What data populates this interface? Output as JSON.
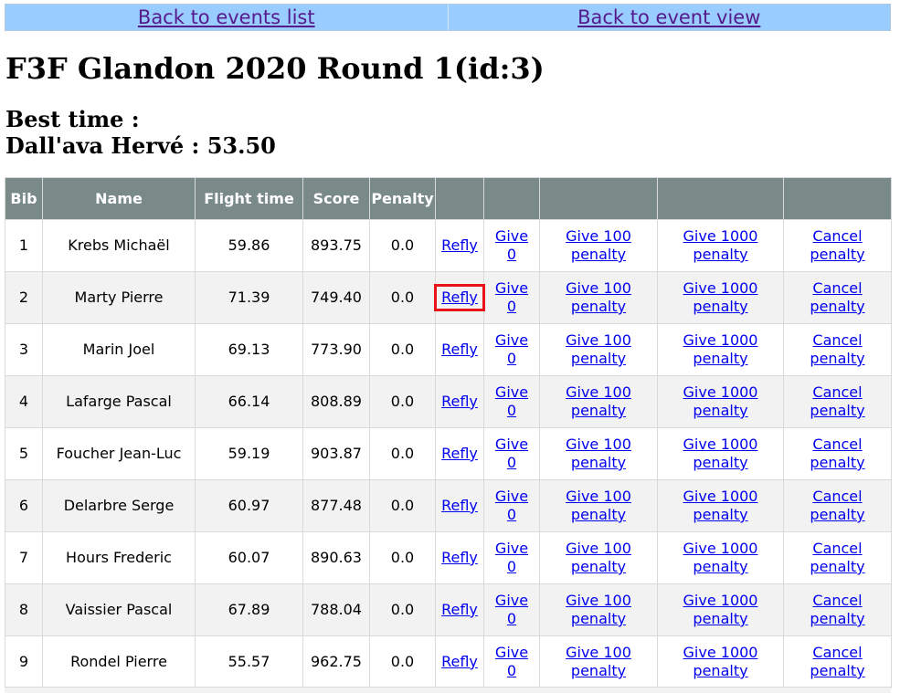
{
  "nav": {
    "back_events": "Back to events list",
    "back_event_view": "Back to event view"
  },
  "page_title": "F3F Glandon 2020 Round 1(id:3)",
  "best_time": {
    "label": "Best time :",
    "value": "Dall'ava Hervé : 53.50"
  },
  "table": {
    "headers": [
      "Bib",
      "Name",
      "Flight time",
      "Score",
      "Penalty",
      "",
      "",
      "",
      "",
      ""
    ],
    "actions": {
      "refly": "Refly",
      "give0_line1": "Give",
      "give0_line2": "0",
      "give100_line1": "Give 100",
      "give100_line2": "penalty",
      "give1000_line1": "Give 1000",
      "give1000_line2": "penalty",
      "cancel_line1": "Cancel",
      "cancel_line2": "penalty"
    },
    "rows": [
      {
        "bib": "1",
        "name": "Krebs Michaël",
        "flight_time": "59.86",
        "score": "893.75",
        "penalty": "0.0"
      },
      {
        "bib": "2",
        "name": "Marty Pierre",
        "flight_time": "71.39",
        "score": "749.40",
        "penalty": "0.0"
      },
      {
        "bib": "3",
        "name": "Marin Joel",
        "flight_time": "69.13",
        "score": "773.90",
        "penalty": "0.0"
      },
      {
        "bib": "4",
        "name": "Lafarge Pascal",
        "flight_time": "66.14",
        "score": "808.89",
        "penalty": "0.0"
      },
      {
        "bib": "5",
        "name": "Foucher Jean-Luc",
        "flight_time": "59.19",
        "score": "903.87",
        "penalty": "0.0"
      },
      {
        "bib": "6",
        "name": "Delarbre Serge",
        "flight_time": "60.97",
        "score": "877.48",
        "penalty": "0.0"
      },
      {
        "bib": "7",
        "name": "Hours Frederic",
        "flight_time": "60.07",
        "score": "890.63",
        "penalty": "0.0"
      },
      {
        "bib": "8",
        "name": "Vaissier Pascal",
        "flight_time": "67.89",
        "score": "788.04",
        "penalty": "0.0"
      },
      {
        "bib": "9",
        "name": "Rondel Pierre",
        "flight_time": "55.57",
        "score": "962.75",
        "penalty": "0.0"
      }
    ]
  },
  "colors": {
    "nav_background": "#99ccff",
    "header_background": "#7a8a89",
    "highlight_border": "#e8141a"
  }
}
